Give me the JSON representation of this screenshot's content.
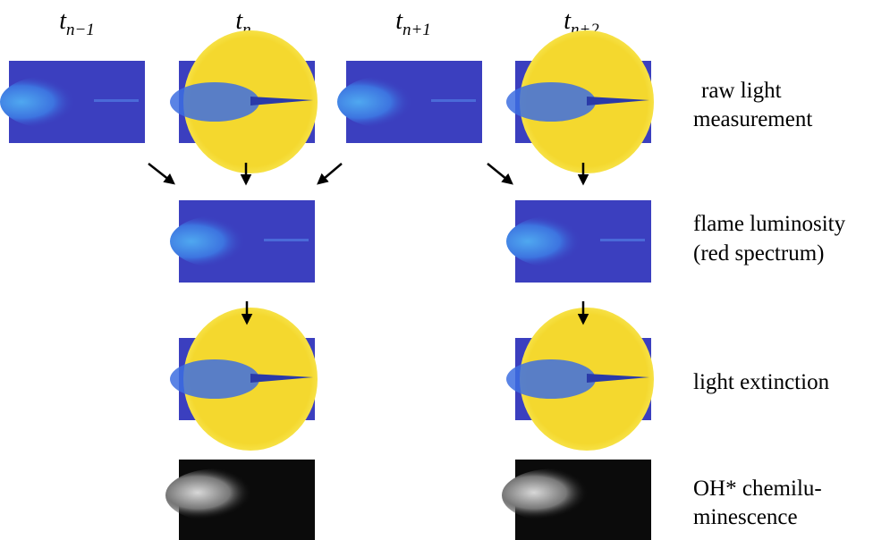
{
  "columns": [
    {
      "base": "t",
      "sub": "n−1"
    },
    {
      "base": "t",
      "sub": "n"
    },
    {
      "base": "t",
      "sub": "n+1"
    },
    {
      "base": "t",
      "sub": "n+2"
    }
  ],
  "rows": [
    {
      "lines": [
        "raw light",
        "measurement"
      ]
    },
    {
      "lines": [
        "flame luminosity",
        "(red spectrum)"
      ]
    },
    {
      "lines": [
        "light extinction"
      ]
    },
    {
      "lines": [
        "OH* chemilu-",
        "minescence"
      ]
    }
  ]
}
